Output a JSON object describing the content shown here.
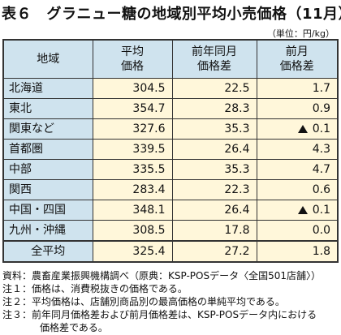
{
  "title": "表６　グラニュー糖の地域別平均小売価格（11月）",
  "unit": "（単位：円/kg）",
  "table": {
    "headers": {
      "region": "地域",
      "avg_line1": "平均",
      "avg_line2": "価格",
      "yoy_line1": "前年同月",
      "yoy_line2": "価格差",
      "mom_line1": "前月",
      "mom_line2": "価格差"
    },
    "rows": [
      {
        "region": "北海道",
        "avg": "304.5",
        "yoy": "22.5",
        "mom": "1.7",
        "mom_down": false
      },
      {
        "region": "東北",
        "avg": "354.7",
        "yoy": "28.3",
        "mom": "0.9",
        "mom_down": false
      },
      {
        "region": "関東など",
        "avg": "327.6",
        "yoy": "35.3",
        "mom": "0.1",
        "mom_down": true
      },
      {
        "region": "首都圏",
        "avg": "339.5",
        "yoy": "26.4",
        "mom": "4.3",
        "mom_down": false
      },
      {
        "region": "中部",
        "avg": "335.5",
        "yoy": "35.3",
        "mom": "4.7",
        "mom_down": false
      },
      {
        "region": "関西",
        "avg": "283.4",
        "yoy": "22.3",
        "mom": "0.6",
        "mom_down": false
      },
      {
        "region": "中国・四国",
        "avg": "348.1",
        "yoy": "26.4",
        "mom": "0.1",
        "mom_down": true
      },
      {
        "region": "九州・沖縄",
        "avg": "308.5",
        "yoy": "17.8",
        "mom": "0.0",
        "mom_down": false
      }
    ],
    "total": {
      "region": "全平均",
      "avg": "325.4",
      "yoy": "27.2",
      "mom": "1.8"
    }
  },
  "notes": {
    "source_label": "資料：",
    "source_text": "農畜産業振興機構調べ（原典：KSP-POSデータ〈全国501店舗〉）",
    "n1_label": "注１：",
    "n1_text": "価格は、消費税抜きの価格である。",
    "n2_label": "注２：",
    "n2_text": "平均価格は、店舗別商品別の最高価格の単純平均である。",
    "n3_label": "注３：",
    "n3_text": "前年同月価格差および前月価格差は、KSP-POSデータ内における",
    "n3_cont": "価格差である。"
  },
  "colors": {
    "header_bg": "#cfe3ee",
    "cell_bg": "#fff7da"
  }
}
